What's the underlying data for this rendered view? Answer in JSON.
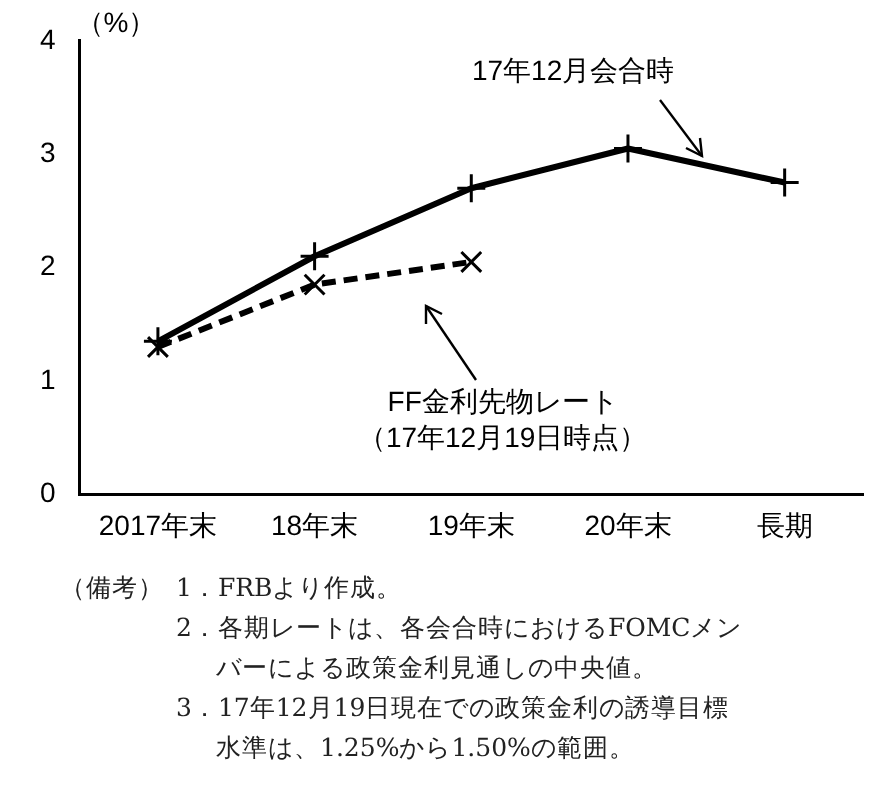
{
  "chart_data": {
    "type": "line",
    "ylabel": "（%）",
    "categories": [
      "2017年末",
      "18年末",
      "19年末",
      "20年末",
      "長期"
    ],
    "ylim": [
      0,
      4
    ],
    "yticks": [
      0,
      1,
      2,
      3,
      4
    ],
    "grid": false,
    "legend": false,
    "marker": "cross",
    "series": [
      {
        "name": "17年12月会合時",
        "color": "#000000",
        "line_style": "solid",
        "values": [
          1.35,
          2.1,
          2.7,
          3.05,
          2.75
        ]
      },
      {
        "name": "FF金利先物レート（17年12月19日時点）",
        "color": "#000000",
        "line_style": "dashed",
        "values": [
          1.3,
          1.85,
          2.05,
          null,
          null
        ]
      }
    ],
    "annotations": [
      "（備考）",
      "1．FRBより作成。",
      "2．各期レートは、各会合時におけるFOMCメンバーによる政策金利見通しの中央値。",
      "3．17年12月19日現在での政策金利の誘導目標水準は、1.25%から1.50%の範囲。"
    ]
  }
}
